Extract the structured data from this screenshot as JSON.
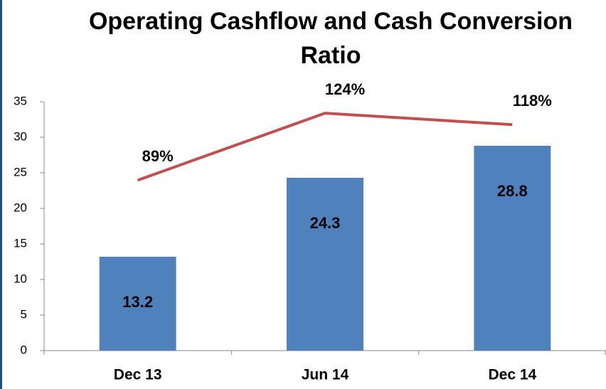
{
  "chart_data": {
    "type": "bar-line",
    "title": "Operating Cashflow and Cash Conversion Ratio",
    "categories": [
      "Dec 13",
      "Jun 14",
      "Dec 14"
    ],
    "series": [
      {
        "type": "bar",
        "color": "#4f81bd",
        "values": [
          13.2,
          24.3,
          28.8
        ]
      },
      {
        "type": "line",
        "color": "#c0504d",
        "axis": "y2",
        "values": [
          89,
          124,
          118
        ],
        "value_labels": [
          "89%",
          "124%",
          "118%"
        ]
      }
    ],
    "ylim": [
      0,
      35
    ],
    "yticks": [
      0,
      5,
      10,
      15,
      20,
      25,
      30,
      35
    ],
    "y2lim": [
      0,
      130
    ],
    "grid": false
  }
}
